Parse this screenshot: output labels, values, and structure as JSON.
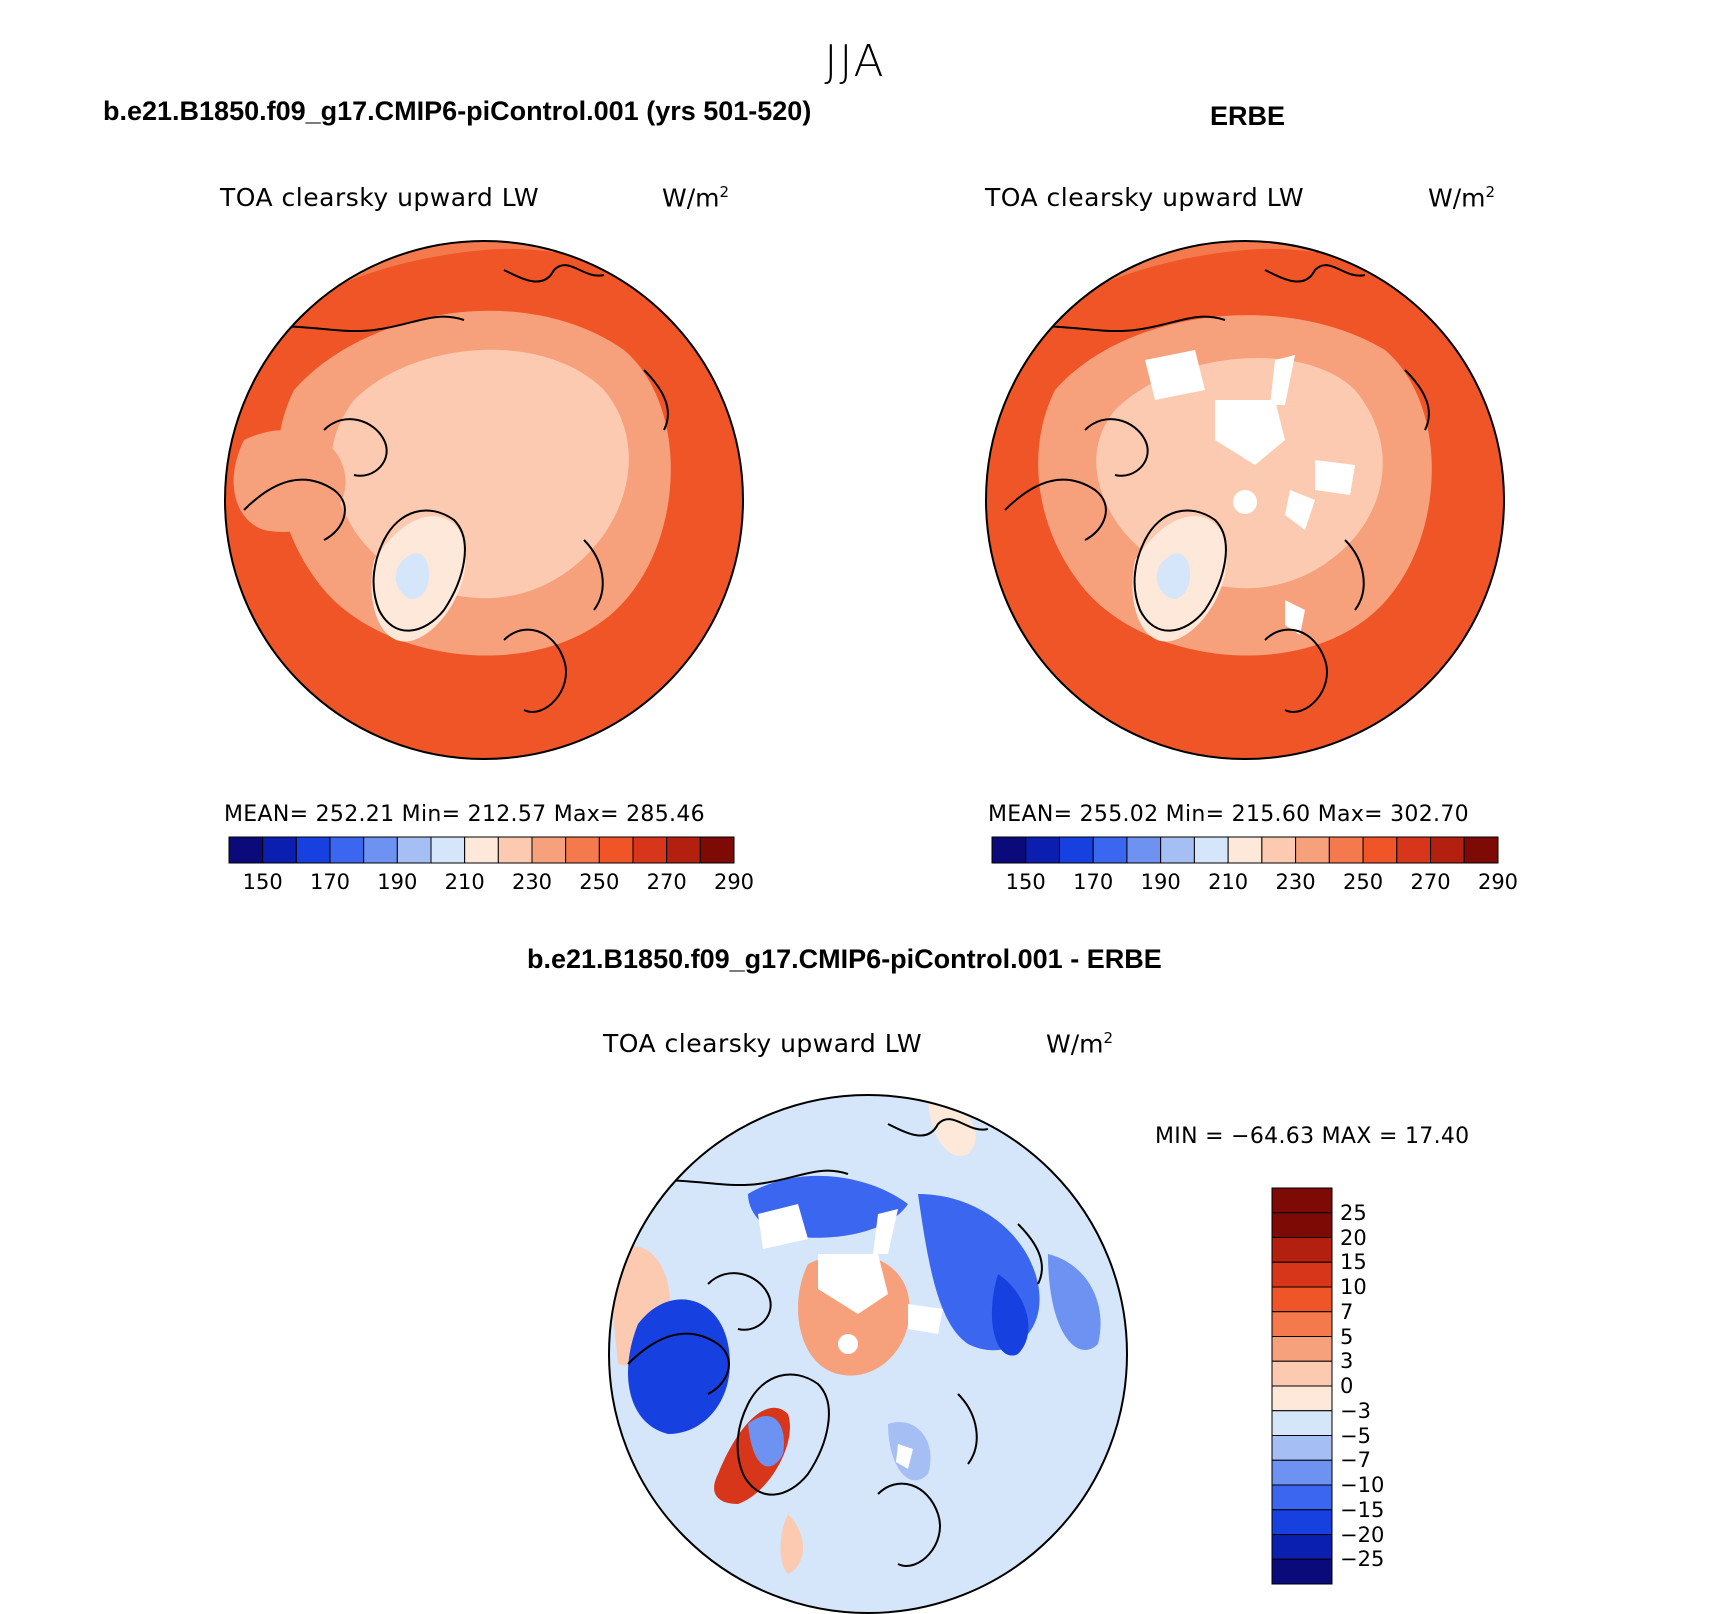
{
  "season": "JJA",
  "panels": [
    {
      "title": "b.e21.B1850.f09_g17.CMIP6-piControl.001 (yrs 501-520)",
      "variable": "TOA clearsky upward LW",
      "units_base": "W/m",
      "units_exp": "2",
      "stats": "MEAN= 252.21   Min= 212.57   Max= 285.46"
    },
    {
      "title": "ERBE",
      "variable": "TOA clearsky upward LW",
      "units_base": "W/m",
      "units_exp": "2",
      "stats": "MEAN= 255.02   Min= 215.60   Max= 302.70"
    },
    {
      "title": "b.e21.B1850.f09_g17.CMIP6-piControl.001 - ERBE",
      "variable": "TOA clearsky upward LW",
      "units_base": "W/m",
      "units_exp": "2",
      "stats": "MIN = −64.63 MAX =   17.40"
    }
  ],
  "colorbar_abs": {
    "labels": [
      "150",
      "170",
      "190",
      "210",
      "230",
      "250",
      "270",
      "290"
    ],
    "colors": [
      "#0a0a7a",
      "#0a1fb0",
      "#1740e0",
      "#3b66f0",
      "#6d92f2",
      "#a5bff5",
      "#d5e6fa",
      "#fde8da",
      "#fbcab0",
      "#f6a07c",
      "#f47a4e",
      "#ef5526",
      "#d7361a",
      "#b3200f",
      "#7e0a06"
    ]
  },
  "colorbar_diff": {
    "labels": [
      "25",
      "20",
      "15",
      "10",
      "7",
      "5",
      "3",
      "0",
      "−3",
      "−5",
      "−7",
      "−10",
      "−15",
      "−20",
      "−25"
    ],
    "colors_top_to_bottom": [
      "#7e0a06",
      "#b3200f",
      "#d7361a",
      "#ef5526",
      "#f47a4e",
      "#f6a07c",
      "#fbcab0",
      "#fde8da",
      "#d5e6fa",
      "#a5bff5",
      "#6d92f2",
      "#3b66f0",
      "#1740e0",
      "#0a1fb0",
      "#0a0a7a"
    ]
  }
}
